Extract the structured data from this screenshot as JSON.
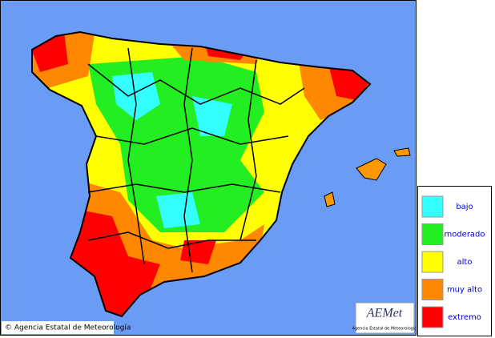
{
  "map": {
    "copyright": "© Agencia Estatal de Meteorología",
    "logo": {
      "text": "AEMet",
      "subtitle": "Agencia Estatal de Meteorología"
    },
    "legend": [
      {
        "label": "bajo",
        "color": "#33ffff"
      },
      {
        "label": "moderado",
        "color": "#22ee22"
      },
      {
        "label": "alto",
        "color": "#ffff00"
      },
      {
        "label": "muy alto",
        "color": "#ff8800"
      },
      {
        "label": "extremo",
        "color": "#ff0000"
      }
    ]
  }
}
